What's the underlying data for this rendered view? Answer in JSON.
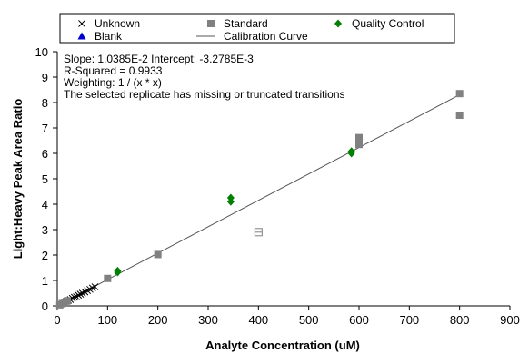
{
  "chart_data": {
    "type": "scatter",
    "title": "",
    "xlabel": "Analyte Concentration (uM)",
    "ylabel": "Light:Heavy Peak Area Ratio",
    "xlim": [
      0,
      900
    ],
    "ylim": [
      0,
      10
    ],
    "x_ticks": [
      "0",
      "100",
      "200",
      "300",
      "400",
      "500",
      "600",
      "700",
      "800",
      "900"
    ],
    "y_ticks": [
      "0",
      "1",
      "2",
      "3",
      "4",
      "5",
      "6",
      "7",
      "8",
      "9",
      "10"
    ],
    "grid": false,
    "legend_position": "top",
    "legend": [
      {
        "name": "Unknown",
        "marker": "cross",
        "color": "#000000"
      },
      {
        "name": "Standard",
        "marker": "square",
        "color": "#808080"
      },
      {
        "name": "Quality Control",
        "marker": "diamond",
        "color": "#008000"
      },
      {
        "name": "Blank",
        "marker": "triangle",
        "color": "#0000cc"
      },
      {
        "name": "Calibration Curve",
        "marker": "line",
        "color": "#555555"
      }
    ],
    "annotations": [
      "Slope: 1.0385E-2 Intercept: -3.2785E-3",
      "R-Squared = 0.9933",
      "Weighting: 1 / (x * x)",
      "The selected replicate has missing or truncated transitions"
    ],
    "calibration_curve": {
      "slope": 0.010385,
      "intercept": -0.0032785,
      "x_range": [
        0,
        800
      ]
    },
    "series": [
      {
        "name": "Unknown",
        "marker": "cross",
        "color": "#000000",
        "points": [
          [
            10,
            0.1
          ],
          [
            14,
            0.15
          ],
          [
            18,
            0.18
          ],
          [
            22,
            0.22
          ],
          [
            26,
            0.25
          ],
          [
            30,
            0.3
          ],
          [
            34,
            0.34
          ],
          [
            38,
            0.36
          ],
          [
            42,
            0.42
          ],
          [
            46,
            0.46
          ],
          [
            50,
            0.5
          ],
          [
            55,
            0.55
          ],
          [
            60,
            0.6
          ],
          [
            65,
            0.65
          ],
          [
            70,
            0.7
          ],
          [
            75,
            0.75
          ]
        ]
      },
      {
        "name": "Standard",
        "marker": "square",
        "color": "#808080",
        "points": [
          [
            5,
            0.04
          ],
          [
            10,
            0.09
          ],
          [
            15,
            0.14
          ],
          [
            20,
            0.2
          ],
          [
            100,
            1.08
          ],
          [
            200,
            2.02
          ],
          [
            600,
            6.35
          ],
          [
            600,
            6.5
          ],
          [
            600,
            6.62
          ],
          [
            800,
            7.5
          ],
          [
            800,
            8.35
          ]
        ]
      },
      {
        "name": "Standard (excluded)",
        "marker": "open-square",
        "color": "#808080",
        "points": [
          [
            400,
            2.9
          ]
        ]
      },
      {
        "name": "Quality Control",
        "marker": "diamond",
        "color": "#008000",
        "points": [
          [
            120,
            1.32
          ],
          [
            120,
            1.38
          ],
          [
            345,
            4.1
          ],
          [
            345,
            4.25
          ],
          [
            585,
            6.0
          ],
          [
            585,
            6.08
          ]
        ]
      }
    ]
  }
}
